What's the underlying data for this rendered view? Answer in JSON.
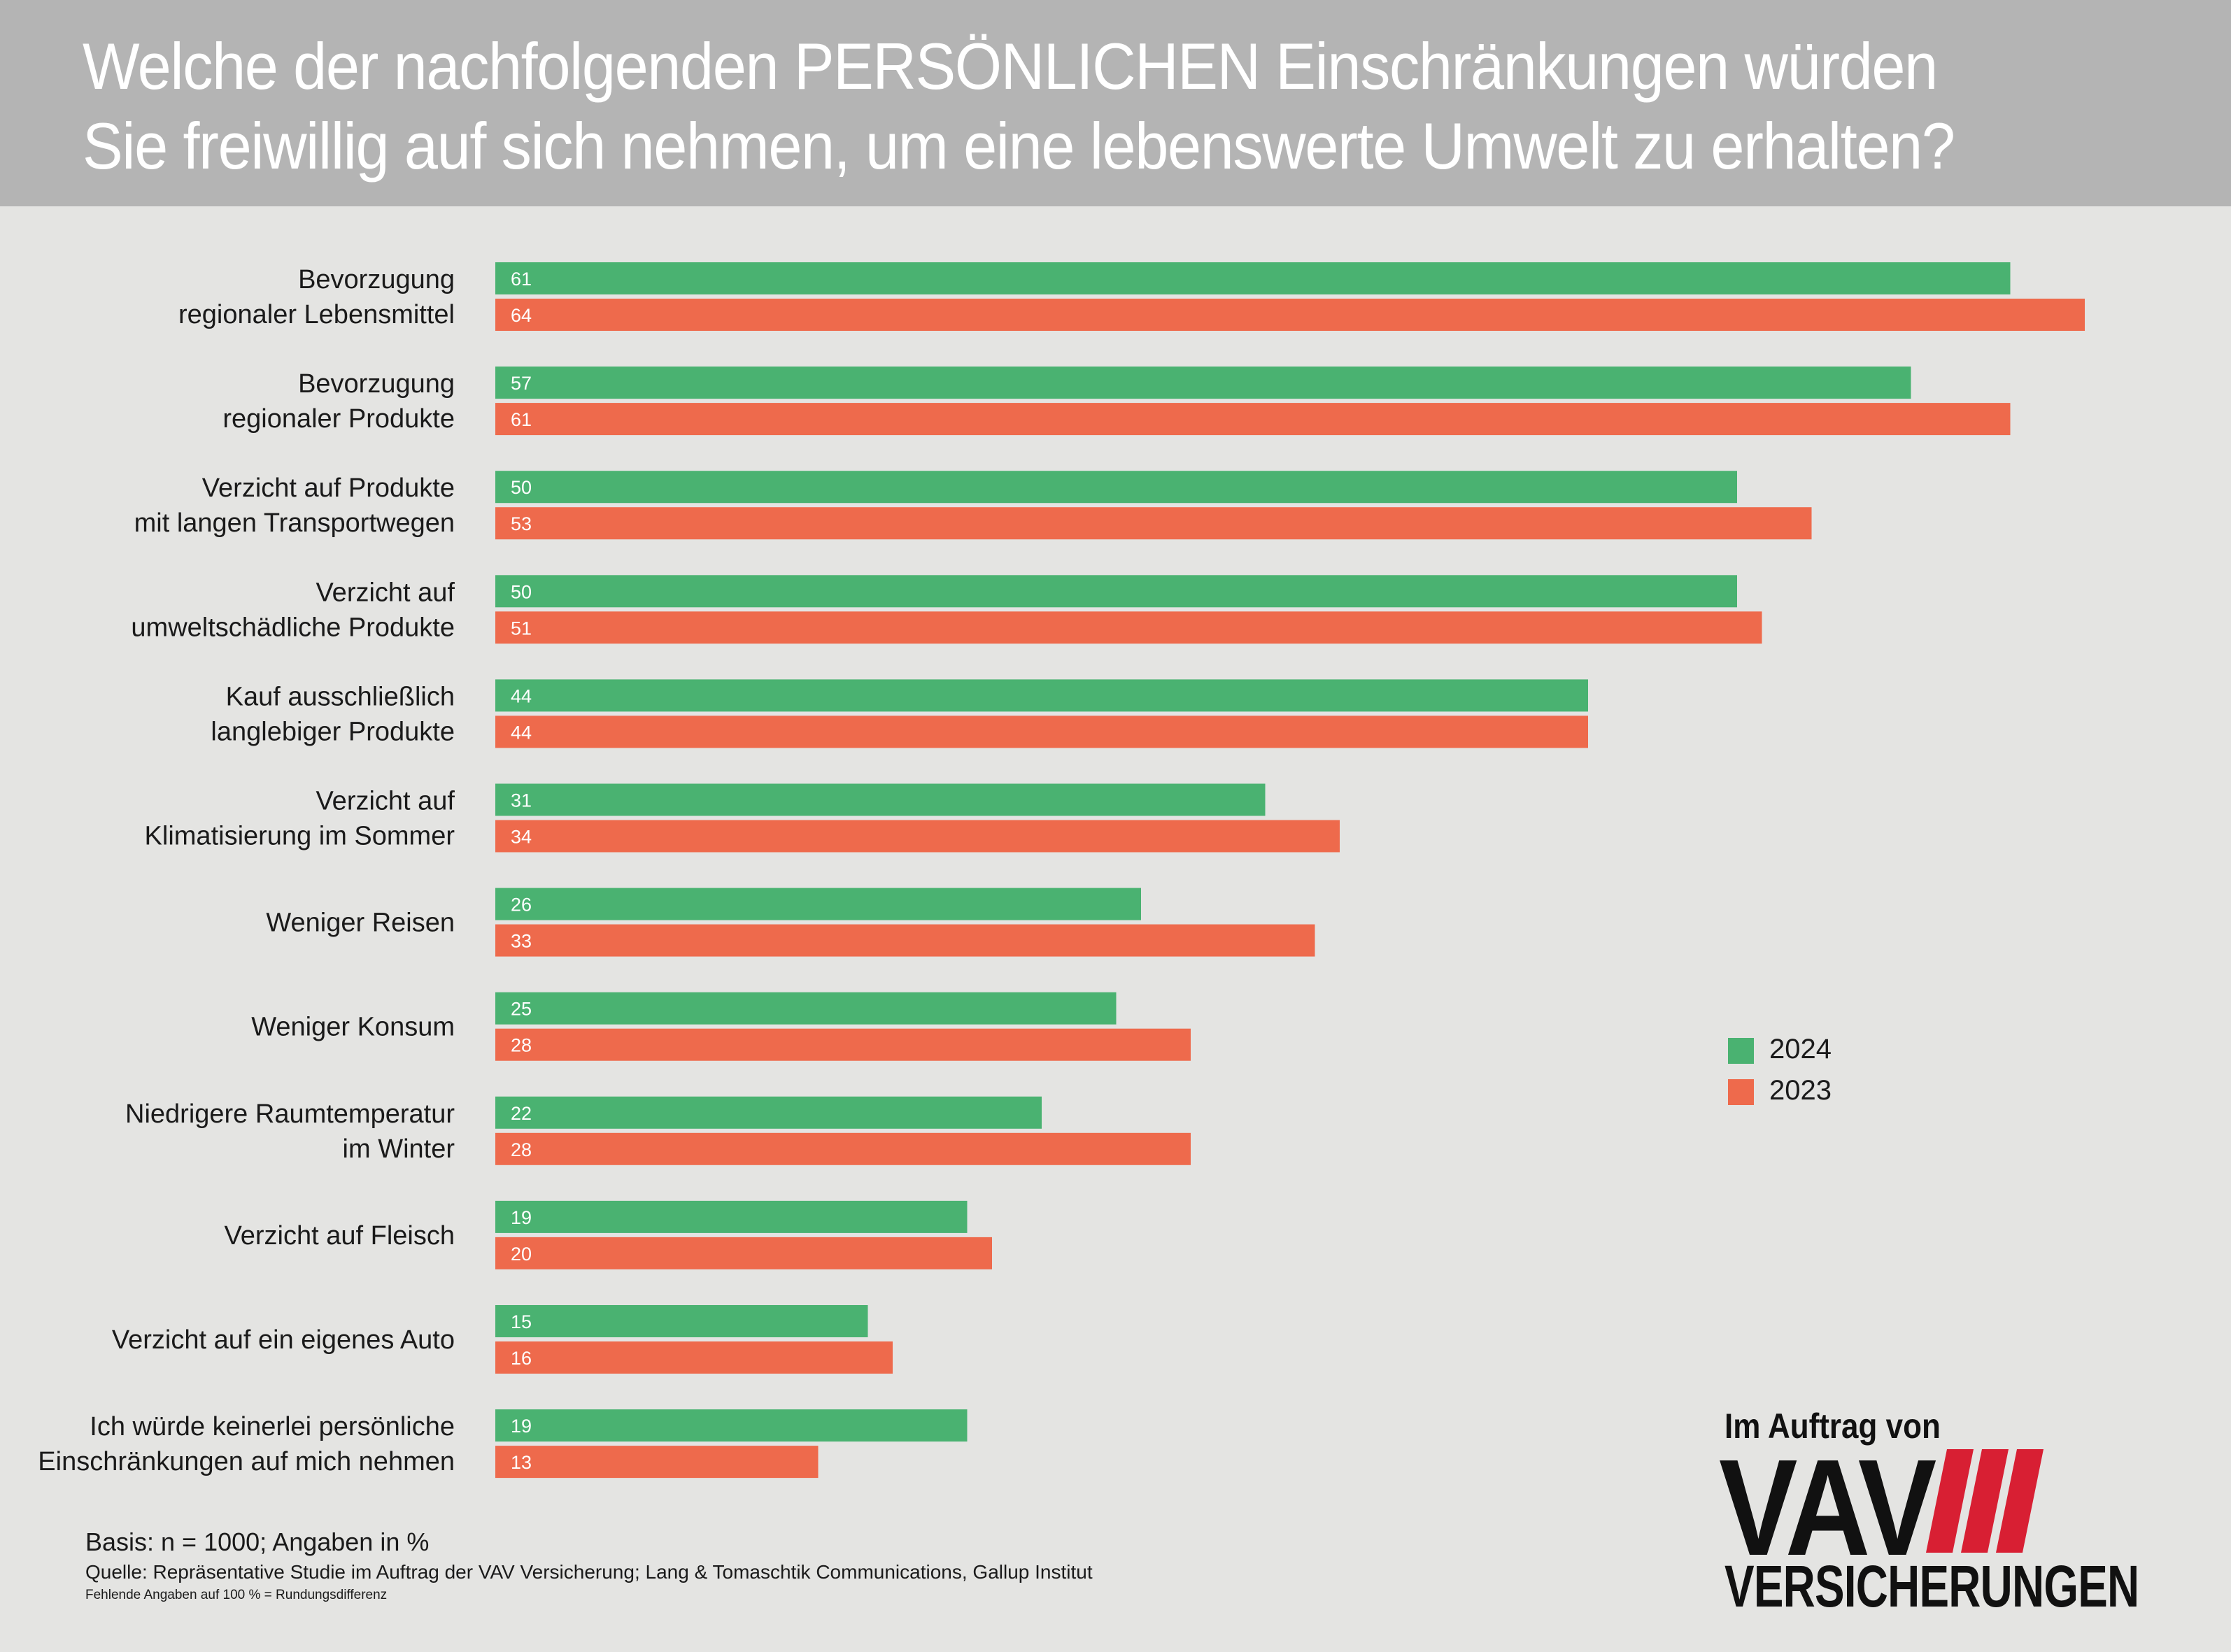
{
  "header": {
    "title": "Welche der nachfolgenden PERSÖNLICHEN Einschränkungen würden Sie freiwillig auf sich nehmen, um eine lebenswerte Umwelt zu erhalten?"
  },
  "colors": {
    "c2024": "#4ab271",
    "c2023": "#ee6a4c",
    "header_bg": "#b4b4b4",
    "page_bg": "#e4e4e2",
    "logo_red": "#d81f33"
  },
  "chart_data": {
    "type": "bar",
    "orientation": "horizontal",
    "title": "Welche der nachfolgenden PERSÖNLICHEN Einschränkungen würden Sie freiwillig auf sich nehmen, um eine lebenswerte Umwelt zu erhalten?",
    "categories": [
      [
        "Bevorzugung",
        "regionaler Lebensmittel"
      ],
      [
        "Bevorzugung",
        "regionaler Produkte"
      ],
      [
        "Verzicht auf Produkte",
        "mit langen Transportwegen"
      ],
      [
        "Verzicht auf",
        "umweltschädliche Produkte"
      ],
      [
        "Kauf ausschließlich",
        "langlebiger Produkte"
      ],
      [
        "Verzicht auf",
        "Klimatisierung im Sommer"
      ],
      [
        "Weniger Reisen"
      ],
      [
        "Weniger Konsum"
      ],
      [
        "Niedrigere Raumtemperatur",
        "im Winter"
      ],
      [
        "Verzicht auf Fleisch"
      ],
      [
        "Verzicht auf ein eigenes Auto"
      ],
      [
        "Ich würde keinerlei persönliche",
        "Einschränkungen auf mich nehmen"
      ]
    ],
    "series": [
      {
        "name": "2024",
        "color": "#4ab271",
        "values": [
          61,
          57,
          50,
          50,
          44,
          31,
          26,
          25,
          22,
          19,
          15,
          19
        ]
      },
      {
        "name": "2023",
        "color": "#ee6a4c",
        "values": [
          64,
          61,
          53,
          51,
          44,
          34,
          33,
          28,
          28,
          20,
          16,
          13
        ]
      }
    ],
    "xlim": [
      0,
      64
    ],
    "grid": false,
    "legend_position": "right"
  },
  "legend": {
    "label_2024": "2024",
    "label_2023": "2023"
  },
  "footer": {
    "basis": "Basis: n = 1000; Angaben in %",
    "source": "Quelle: Repräsentative Studie im Auftrag der VAV Versicherung; Lang & Tomaschtik Communications, Gallup Institut",
    "note": "Fehlende Angaben auf 100 % = Rundungsdifferenz"
  },
  "logo": {
    "caption": "Im Auftrag von",
    "brand": "VAV",
    "sub": "VERSICHERUNGEN"
  }
}
